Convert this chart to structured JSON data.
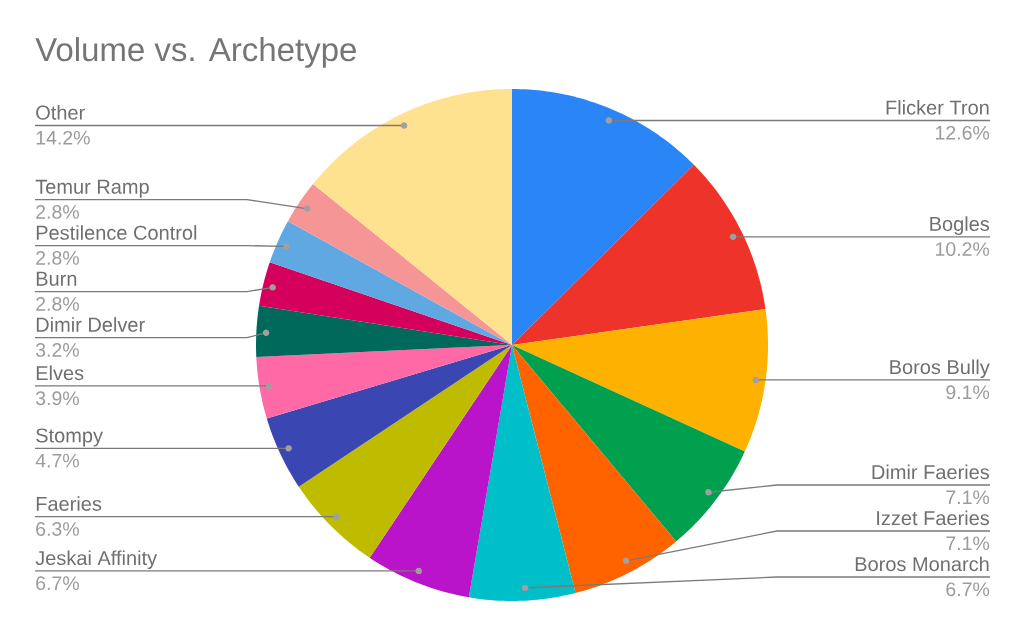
{
  "chart_data": {
    "type": "pie",
    "title": "Volume vs. Archetype",
    "categories": [
      "Flicker Tron",
      "Bogles",
      "Boros Bully",
      "Dimir Faeries",
      "Izzet Faeries",
      "Boros Monarch",
      "Jeskai Affinity",
      "Faeries",
      "Stompy",
      "Elves",
      "Dimir Delver",
      "Burn",
      "Pestilence Control",
      "Temur Ramp",
      "Other"
    ],
    "values": [
      12.6,
      10.2,
      9.1,
      7.1,
      7.1,
      6.7,
      6.7,
      6.3,
      4.7,
      3.9,
      3.2,
      2.8,
      2.8,
      2.8,
      14.2
    ],
    "value_labels": [
      "12.6%",
      "10.2%",
      "9.1%",
      "7.1%",
      "7.1%",
      "6.7%",
      "6.7%",
      "6.3%",
      "4.7%",
      "3.9%",
      "3.2%",
      "2.8%",
      "2.8%",
      "2.8%",
      "14.2%"
    ],
    "colors": [
      "#2a86f7",
      "#ee342a",
      "#ffb100",
      "#00a04f",
      "#ff6300",
      "#00bfc8",
      "#b914c9",
      "#bfbc00",
      "#3a46b1",
      "#ff69a6",
      "#00695b",
      "#d5005c",
      "#5fa8e2",
      "#f69596",
      "#ffe28f"
    ]
  }
}
